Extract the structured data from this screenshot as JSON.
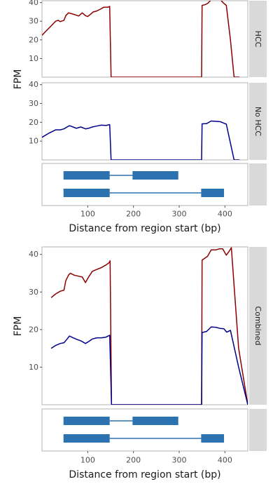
{
  "chart_data": [
    {
      "type": "line",
      "panel": "top",
      "ylabel": "FPM",
      "xlabel": "Distance from region start (bp)",
      "xlim": [
        0,
        450
      ],
      "x_ticks": [
        100,
        200,
        300,
        400
      ],
      "grid": false,
      "facets": [
        {
          "strip": "HCC",
          "ylim": [
            0,
            41
          ],
          "y_ticks": [
            10,
            20,
            30,
            40
          ],
          "series": [
            {
              "color": "#8b0000",
              "points": [
                [
                  0,
                  22.5
                ],
                [
                  10,
                  25
                ],
                [
                  20,
                  27.5
                ],
                [
                  30,
                  30
                ],
                [
                  35,
                  30.5
                ],
                [
                  40,
                  29.8
                ],
                [
                  48,
                  30.5
                ],
                [
                  52,
                  33
                ],
                [
                  58,
                  34.5
                ],
                [
                  65,
                  34
                ],
                [
                  72,
                  33.5
                ],
                [
                  80,
                  32.8
                ],
                [
                  88,
                  34.5
                ],
                [
                  95,
                  33
                ],
                [
                  100,
                  32.5
                ],
                [
                  105,
                  33.5
                ],
                [
                  112,
                  35
                ],
                [
                  120,
                  35.5
                ],
                [
                  128,
                  36.5
                ],
                [
                  135,
                  37.5
                ],
                [
                  145,
                  37.5
                ],
                [
                  148,
                  38
                ],
                [
                  151,
                  0
                ],
                [
                  175,
                  0
                ],
                [
                  200,
                  0
                ],
                [
                  250,
                  0
                ],
                [
                  300,
                  0
                ],
                [
                  349,
                  0
                ],
                [
                  350,
                  38.5
                ],
                [
                  356,
                  38.8
                ],
                [
                  362,
                  39.5
                ],
                [
                  370,
                  41.5
                ],
                [
                  380,
                  41.5
                ],
                [
                  390,
                  41.5
                ],
                [
                  398,
                  39.5
                ],
                [
                  403,
                  38.5
                ],
                [
                  412,
                  20
                ],
                [
                  420,
                  0
                ],
                [
                  432,
                  0
                ]
              ]
            }
          ]
        },
        {
          "strip": "No HCC",
          "ylim": [
            0,
            41
          ],
          "y_ticks": [
            10,
            20,
            30,
            40
          ],
          "series": [
            {
              "color": "#00008b",
              "points": [
                [
                  0,
                  12
                ],
                [
                  15,
                  14.2
                ],
                [
                  30,
                  16
                ],
                [
                  40,
                  16
                ],
                [
                  48,
                  16.5
                ],
                [
                  55,
                  17.5
                ],
                [
                  60,
                  18.2
                ],
                [
                  68,
                  17.5
                ],
                [
                  75,
                  16.8
                ],
                [
                  85,
                  17.5
                ],
                [
                  95,
                  16.5
                ],
                [
                  102,
                  16.8
                ],
                [
                  110,
                  17.5
                ],
                [
                  120,
                  18
                ],
                [
                  130,
                  18.5
                ],
                [
                  140,
                  18.3
                ],
                [
                  148,
                  18.8
                ],
                [
                  151,
                  0
                ],
                [
                  200,
                  0
                ],
                [
                  300,
                  0
                ],
                [
                  349,
                  0
                ],
                [
                  350,
                  19.2
                ],
                [
                  360,
                  19.3
                ],
                [
                  370,
                  20.7
                ],
                [
                  380,
                  20.5
                ],
                [
                  390,
                  20.3
                ],
                [
                  398,
                  19.5
                ],
                [
                  403,
                  19
                ],
                [
                  420,
                  0
                ],
                [
                  432,
                  0
                ]
              ]
            }
          ]
        }
      ],
      "gene_model": [
        {
          "exons": [
            [
              47,
              148
            ],
            [
              198,
              298
            ]
          ],
          "intron": [
            148,
            198
          ]
        },
        {
          "exons": [
            [
              47,
              148
            ],
            [
              348,
              398
            ]
          ],
          "intron": [
            148,
            348
          ]
        }
      ]
    },
    {
      "type": "line",
      "panel": "bottom",
      "ylabel": "FPM",
      "xlabel": "Distance from region start (bp)",
      "xlim": [
        0,
        450
      ],
      "x_ticks": [
        100,
        200,
        300,
        400
      ],
      "grid": false,
      "facets": [
        {
          "strip": "Combined",
          "ylim": [
            0,
            42
          ],
          "y_ticks": [
            10,
            20,
            30,
            40
          ],
          "series": [
            {
              "color": "#8b0000",
              "points": [
                [
                  20,
                  28.5
                ],
                [
                  30,
                  29.5
                ],
                [
                  40,
                  30.2
                ],
                [
                  48,
                  30.5
                ],
                [
                  52,
                  33
                ],
                [
                  58,
                  34.5
                ],
                [
                  62,
                  35
                ],
                [
                  70,
                  34.5
                ],
                [
                  80,
                  34.2
                ],
                [
                  88,
                  34
                ],
                [
                  95,
                  32.5
                ],
                [
                  102,
                  34
                ],
                [
                  110,
                  35.5
                ],
                [
                  120,
                  36
                ],
                [
                  130,
                  36.5
                ],
                [
                  140,
                  37.2
                ],
                [
                  147,
                  37.8
                ],
                [
                  149,
                  38.3
                ],
                [
                  152,
                  0
                ],
                [
                  200,
                  0
                ],
                [
                  300,
                  0
                ],
                [
                  349,
                  0
                ],
                [
                  350,
                  38.5
                ],
                [
                  356,
                  39
                ],
                [
                  362,
                  39.5
                ],
                [
                  370,
                  41.2
                ],
                [
                  380,
                  41.2
                ],
                [
                  388,
                  41.5
                ],
                [
                  395,
                  41.5
                ],
                [
                  403,
                  39.8
                ],
                [
                  410,
                  41
                ],
                [
                  414,
                  41.8
                ],
                [
                  430,
                  15
                ],
                [
                  450,
                  0
                ]
              ]
            },
            {
              "color": "#00008b",
              "points": [
                [
                  20,
                  15
                ],
                [
                  30,
                  15.8
                ],
                [
                  40,
                  16.3
                ],
                [
                  48,
                  16.5
                ],
                [
                  55,
                  17.5
                ],
                [
                  60,
                  18.3
                ],
                [
                  68,
                  17.8
                ],
                [
                  78,
                  17.3
                ],
                [
                  85,
                  17
                ],
                [
                  95,
                  16.3
                ],
                [
                  102,
                  16.8
                ],
                [
                  110,
                  17.5
                ],
                [
                  120,
                  17.8
                ],
                [
                  130,
                  17.8
                ],
                [
                  140,
                  18
                ],
                [
                  148,
                  18.5
                ],
                [
                  152,
                  0
                ],
                [
                  200,
                  0
                ],
                [
                  300,
                  0
                ],
                [
                  349,
                  0
                ],
                [
                  350,
                  19.2
                ],
                [
                  360,
                  19.5
                ],
                [
                  370,
                  20.7
                ],
                [
                  380,
                  20.6
                ],
                [
                  390,
                  20.3
                ],
                [
                  398,
                  20.2
                ],
                [
                  404,
                  19.3
                ],
                [
                  412,
                  19.8
                ],
                [
                  430,
                  10
                ],
                [
                  450,
                  0
                ]
              ]
            }
          ]
        }
      ],
      "gene_model": [
        {
          "exons": [
            [
              47,
              148
            ],
            [
              198,
              298
            ]
          ],
          "intron": [
            148,
            198
          ]
        },
        {
          "exons": [
            [
              47,
              148
            ],
            [
              348,
              398
            ]
          ],
          "intron": [
            148,
            348
          ]
        }
      ]
    }
  ]
}
